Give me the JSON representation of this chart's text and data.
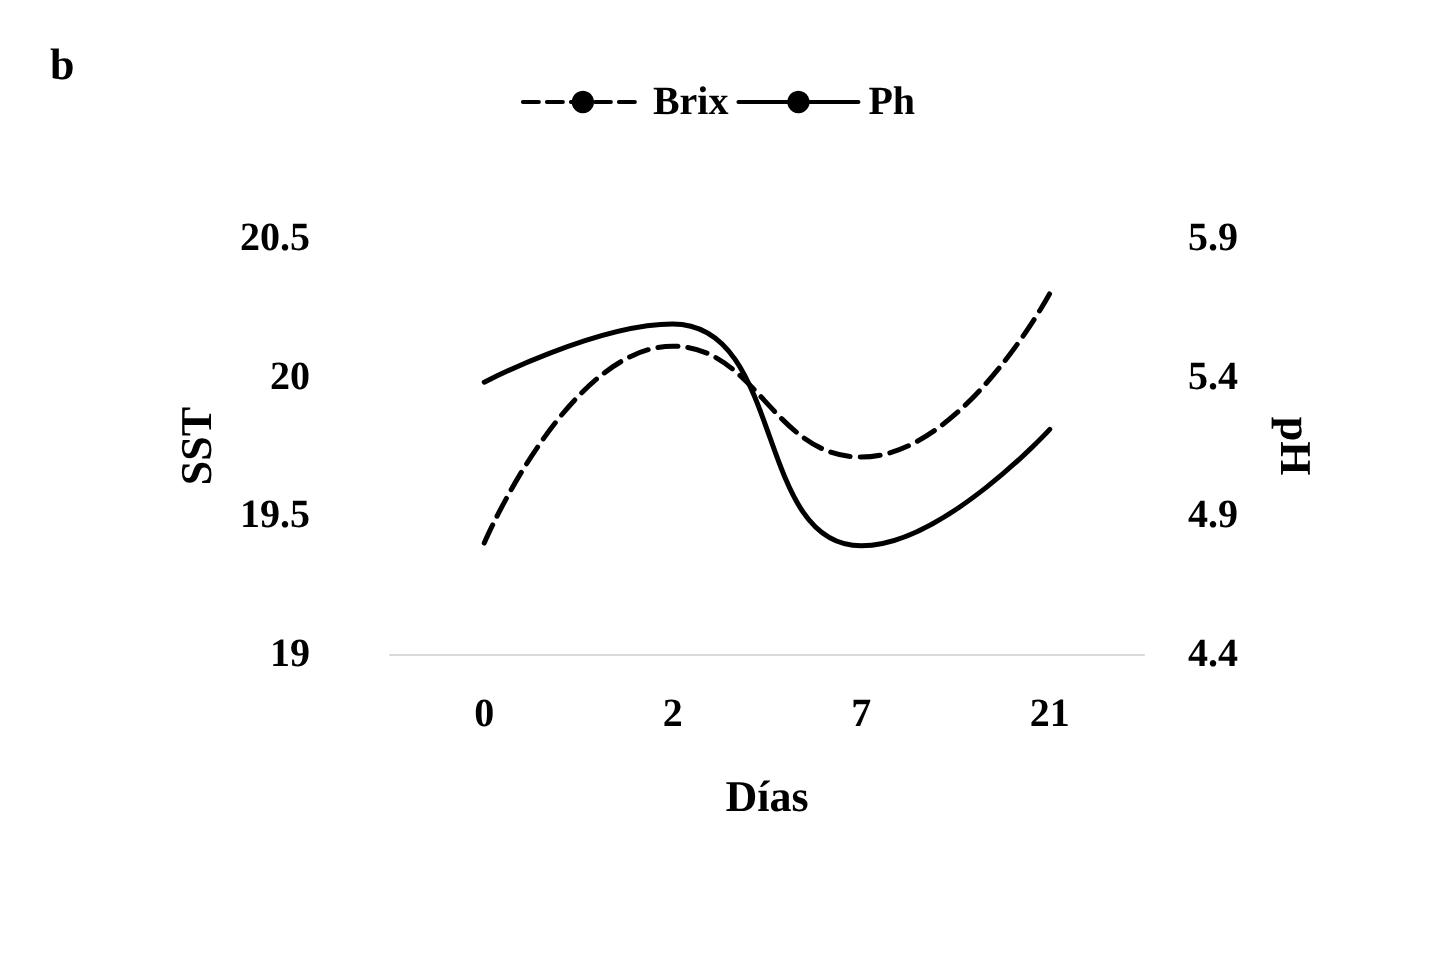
{
  "chart_data": {
    "type": "line",
    "title": "b",
    "xlabel": "Días",
    "ylabel": "SST",
    "y2label": "pH",
    "categories": [
      "0",
      "2",
      "7",
      "21"
    ],
    "series": [
      {
        "name": "Brix",
        "color": "#000000",
        "values": [
          19.4,
          20.11,
          19.71,
          20.3
        ],
        "line_style": "dashed"
      },
      {
        "name": "Ph",
        "color": "#000000",
        "values": [
          5.38,
          5.59,
          4.79,
          5.21
        ],
        "axis": "y2",
        "line_style": "solid"
      }
    ],
    "ylim": [
      19,
      20.5
    ],
    "yticks": [
      19,
      19.5,
      20,
      20.5
    ],
    "y2lim": [
      4.4,
      5.9
    ],
    "y2ticks": [
      4.4,
      4.9,
      5.4,
      5.9
    ],
    "grid": false,
    "legend": "top",
    "marker": "none"
  }
}
